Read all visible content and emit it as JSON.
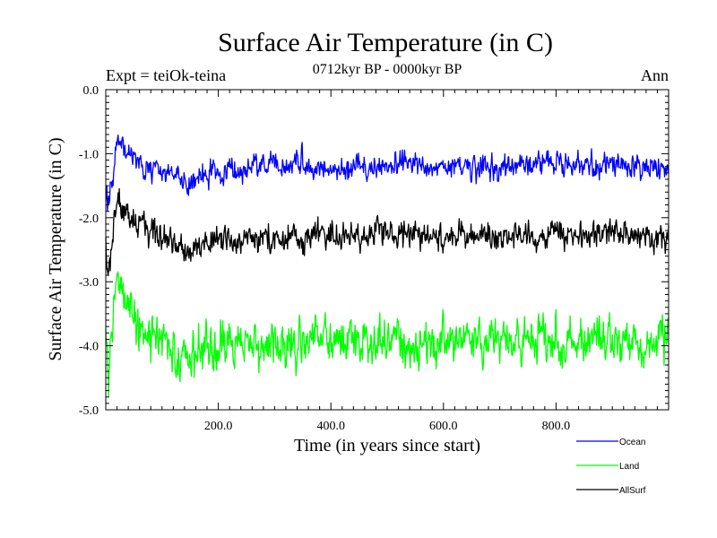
{
  "chart_data": {
    "type": "line",
    "title": "Surface Air Temperature (in C)",
    "subtitle": "0712kyr BP - 0000kyr BP",
    "experiment": "Expt = teiOk-teina",
    "season": "Ann",
    "xlabel": "Time (in years since start)",
    "ylabel": "Surface Air Temperature (in C)",
    "xlim": [
      0,
      1000
    ],
    "ylim": [
      -5.0,
      0.0
    ],
    "xticks": [
      200,
      400,
      600,
      800
    ],
    "xtick_labels": [
      "200.0",
      "400.0",
      "600.0",
      "800.0"
    ],
    "yticks": [
      0,
      -1,
      -2,
      -3,
      -4,
      -5
    ],
    "ytick_labels": [
      "0.0",
      "-1.0",
      "-2.0",
      "-3.0",
      "-4.0",
      "-5.0"
    ],
    "series": [
      {
        "name": "Ocean",
        "color": "#0000ff",
        "points": [
          [
            0,
            -1.7
          ],
          [
            5,
            -1.8
          ],
          [
            10,
            -1.45
          ],
          [
            15,
            -1.1
          ],
          [
            22,
            -0.72
          ],
          [
            30,
            -0.95
          ],
          [
            45,
            -1.0
          ],
          [
            60,
            -1.15
          ],
          [
            80,
            -1.25
          ],
          [
            100,
            -1.3
          ],
          [
            120,
            -1.35
          ],
          [
            140,
            -1.45
          ],
          [
            160,
            -1.35
          ],
          [
            180,
            -1.3
          ],
          [
            200,
            -1.3
          ],
          [
            250,
            -1.25
          ],
          [
            300,
            -1.2
          ],
          [
            350,
            -1.15
          ],
          [
            380,
            -1.2
          ],
          [
            400,
            -1.25
          ],
          [
            450,
            -1.2
          ],
          [
            500,
            -1.2
          ],
          [
            550,
            -1.15
          ],
          [
            600,
            -1.2
          ],
          [
            650,
            -1.25
          ],
          [
            700,
            -1.2
          ],
          [
            750,
            -1.2
          ],
          [
            800,
            -1.15
          ],
          [
            850,
            -1.2
          ],
          [
            900,
            -1.15
          ],
          [
            950,
            -1.2
          ],
          [
            1000,
            -1.2
          ]
        ],
        "noise": 0.13
      },
      {
        "name": "Land",
        "color": "#00ff00",
        "points": [
          [
            0,
            -3.5
          ],
          [
            5,
            -4.6
          ],
          [
            10,
            -4.0
          ],
          [
            15,
            -3.3
          ],
          [
            22,
            -2.95
          ],
          [
            30,
            -3.2
          ],
          [
            40,
            -3.4
          ],
          [
            60,
            -3.7
          ],
          [
            80,
            -3.85
          ],
          [
            100,
            -3.95
          ],
          [
            120,
            -4.05
          ],
          [
            140,
            -4.2
          ],
          [
            160,
            -4.1
          ],
          [
            180,
            -4.05
          ],
          [
            200,
            -4.0
          ],
          [
            250,
            -4.0
          ],
          [
            300,
            -3.95
          ],
          [
            350,
            -3.95
          ],
          [
            380,
            -3.85
          ],
          [
            400,
            -3.95
          ],
          [
            450,
            -3.95
          ],
          [
            500,
            -3.9
          ],
          [
            550,
            -3.95
          ],
          [
            600,
            -3.95
          ],
          [
            650,
            -3.9
          ],
          [
            700,
            -3.9
          ],
          [
            750,
            -3.95
          ],
          [
            800,
            -3.9
          ],
          [
            850,
            -3.9
          ],
          [
            900,
            -3.95
          ],
          [
            950,
            -3.9
          ],
          [
            1000,
            -3.85
          ]
        ],
        "noise": 0.24
      },
      {
        "name": "AllSurf",
        "color": "#000000",
        "points": [
          [
            0,
            -2.5
          ],
          [
            5,
            -2.9
          ],
          [
            10,
            -2.5
          ],
          [
            15,
            -2.0
          ],
          [
            22,
            -1.7
          ],
          [
            30,
            -1.9
          ],
          [
            45,
            -2.0
          ],
          [
            60,
            -2.1
          ],
          [
            80,
            -2.2
          ],
          [
            100,
            -2.3
          ],
          [
            120,
            -2.4
          ],
          [
            140,
            -2.55
          ],
          [
            160,
            -2.45
          ],
          [
            180,
            -2.4
          ],
          [
            200,
            -2.35
          ],
          [
            250,
            -2.35
          ],
          [
            300,
            -2.3
          ],
          [
            350,
            -2.3
          ],
          [
            380,
            -2.2
          ],
          [
            400,
            -2.35
          ],
          [
            450,
            -2.3
          ],
          [
            500,
            -2.25
          ],
          [
            550,
            -2.3
          ],
          [
            600,
            -2.3
          ],
          [
            650,
            -2.25
          ],
          [
            700,
            -2.3
          ],
          [
            750,
            -2.3
          ],
          [
            800,
            -2.25
          ],
          [
            850,
            -2.3
          ],
          [
            900,
            -2.25
          ],
          [
            950,
            -2.3
          ],
          [
            1000,
            -2.3
          ]
        ],
        "noise": 0.15
      }
    ],
    "legend": {
      "placement": "bottom-right",
      "entries": [
        "Ocean",
        "Land",
        "AllSurf"
      ]
    }
  }
}
